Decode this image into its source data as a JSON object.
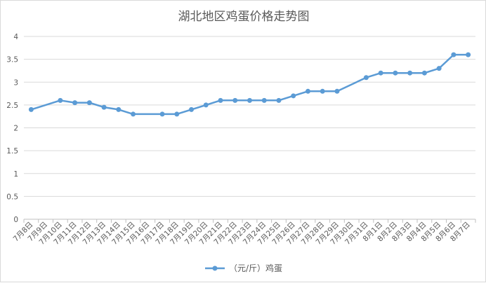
{
  "chart_data": {
    "type": "line",
    "title": "湖北地区鸡蛋价格走势图",
    "categories": [
      "7月8日",
      "7月9日",
      "7月10日",
      "7月11日",
      "7月12日",
      "7月13日",
      "7月14日",
      "7月15日",
      "7月16日",
      "7月17日",
      "7月18日",
      "7月19日",
      "7月20日",
      "7月21日",
      "7月22日",
      "7月23日",
      "7月24日",
      "7月25日",
      "7月26日",
      "7月27日",
      "7月28日",
      "7月29日",
      "7月30日",
      "7月31日",
      "8月1日",
      "8月2日",
      "8月3日",
      "8月4日",
      "8月5日",
      "8月6日",
      "8月7日"
    ],
    "series": [
      {
        "name": "（元/斤）鸡蛋",
        "color": "#5b9bd5",
        "values": [
          2.4,
          null,
          2.6,
          2.55,
          2.55,
          2.45,
          2.4,
          2.3,
          null,
          2.3,
          2.3,
          2.4,
          2.5,
          2.6,
          2.6,
          2.6,
          2.6,
          2.6,
          2.7,
          2.8,
          2.8,
          2.8,
          null,
          3.1,
          3.2,
          3.2,
          3.2,
          3.2,
          3.3,
          3.6,
          3.6
        ]
      }
    ],
    "ylim": [
      0,
      4
    ],
    "yticks": [
      "0",
      "0.5",
      "1",
      "1.5",
      "2",
      "2.5",
      "3",
      "3.5",
      "4"
    ],
    "grid": true,
    "legend_position": "bottom",
    "xlabel": "",
    "ylabel": ""
  }
}
